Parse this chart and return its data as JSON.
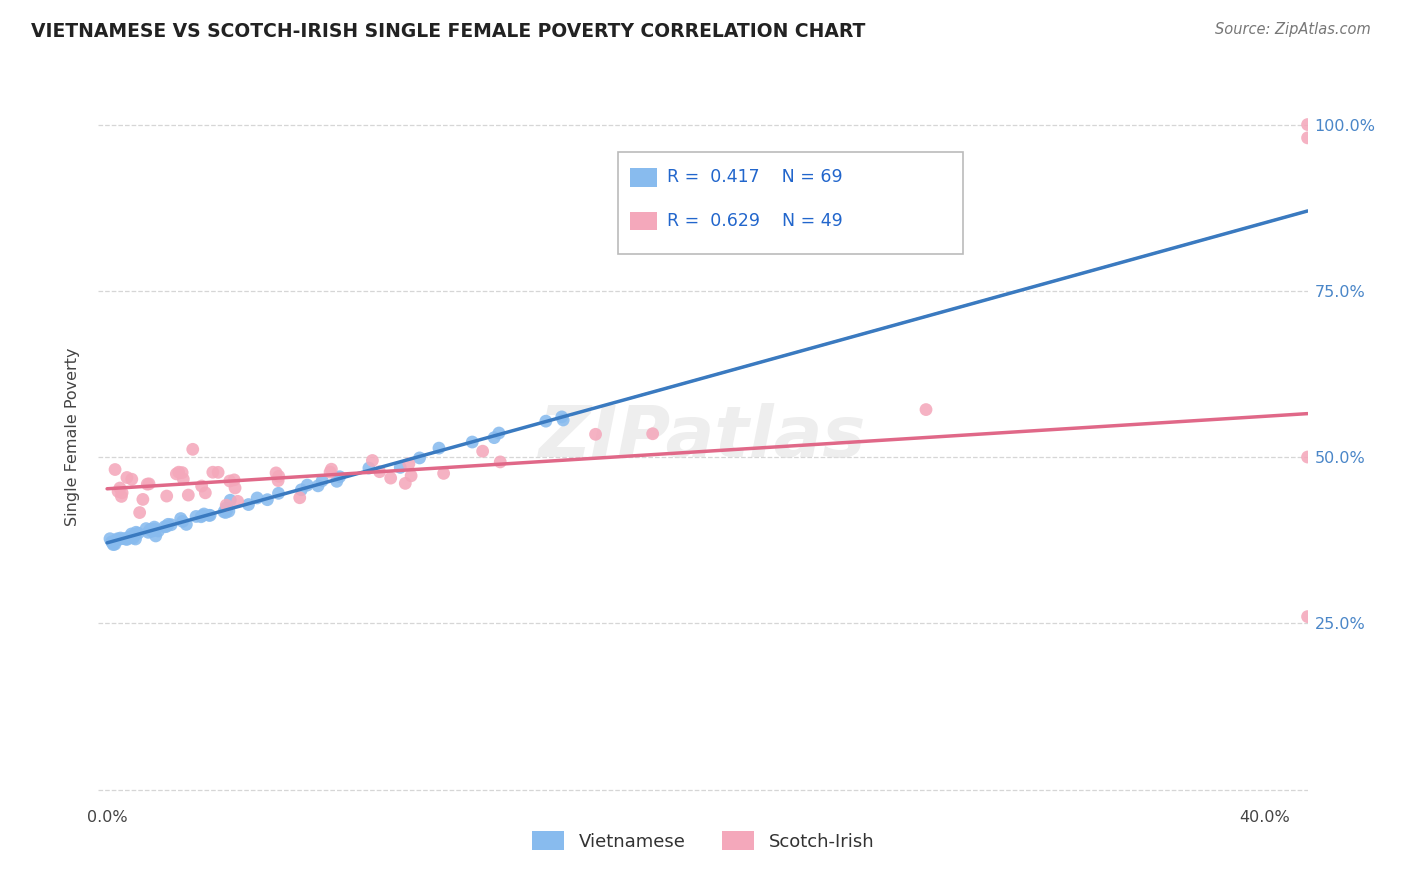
{
  "title": "VIETNAMESE VS SCOTCH-IRISH SINGLE FEMALE POVERTY CORRELATION CHART",
  "source": "Source: ZipAtlas.com",
  "ylabel": "Single Female Poverty",
  "color_vietnamese": "#88bbee",
  "color_scottish": "#f4a8bb",
  "color_viet_line": "#3a7ac0",
  "color_scotch_line": "#e06888",
  "color_dashed": "#aaaaaa",
  "viet_R": 0.417,
  "viet_N": 69,
  "scotch_R": 0.629,
  "scotch_N": 49,
  "xmin": 0.0,
  "xmax": 0.4,
  "ymin": 0.0,
  "ymax": 1.0,
  "x_tick_positions": [
    0.0,
    0.1,
    0.2,
    0.3,
    0.4
  ],
  "x_tick_labels": [
    "0.0%",
    "",
    "",
    "",
    "40.0%"
  ],
  "y_tick_positions": [
    0.0,
    0.25,
    0.5,
    0.75,
    1.0
  ],
  "y_tick_labels_right": [
    "",
    "25.0%",
    "50.0%",
    "75.0%",
    "100.0%"
  ],
  "watermark": "ZIPatlas",
  "legend_label_viet": "Vietnamese",
  "legend_label_scotch": "Scotch-Irish",
  "legend_text_color": "#2266cc",
  "title_color": "#222222",
  "source_color": "#777777",
  "axis_label_color": "#444444",
  "tick_label_color_right": "#4a86c8"
}
